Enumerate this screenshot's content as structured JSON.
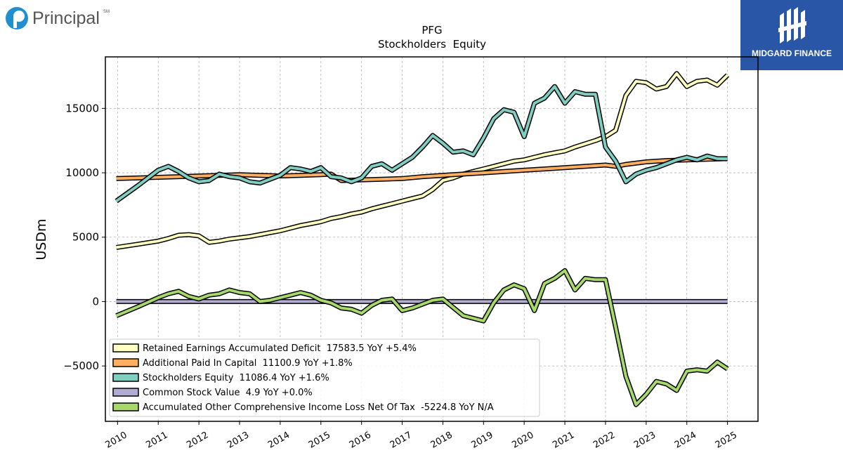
{
  "brand_left": {
    "name": "Principal",
    "mark": "SM"
  },
  "brand_right": {
    "name": "MIDGARD FINANCE"
  },
  "chart_data": {
    "type": "line",
    "title": "PFG",
    "subtitle": "Stockholders  Equity",
    "xlabel": "",
    "ylabel": "USDm",
    "xlim": [
      2009.7,
      2025.75
    ],
    "ylim": [
      -9300,
      19000
    ],
    "yticks": [
      -5000,
      0,
      5000,
      10000,
      15000
    ],
    "ytick_labels": [
      "−5000",
      "0",
      "5000",
      "10000",
      "15000"
    ],
    "xticks": [
      2010,
      2011,
      2012,
      2013,
      2014,
      2015,
      2016,
      2017,
      2018,
      2019,
      2020,
      2021,
      2022,
      2023,
      2024,
      2025
    ],
    "xtick_labels": [
      "2010",
      "2011",
      "2012",
      "2013",
      "2014",
      "2015",
      "2016",
      "2017",
      "2018",
      "2019",
      "2020",
      "2021",
      "2022",
      "2023",
      "2024",
      "2025"
    ],
    "grid": true,
    "legend_position": "lower-left",
    "series": [
      {
        "name": "Retained Earnings Accumulated Deficit",
        "legend": "Retained Earnings Accumulated Deficit  17583.5 YoY +5.4%",
        "color": "#ffffbf",
        "x": [
          2009.97,
          2010.5,
          2011.0,
          2011.25,
          2011.5,
          2011.75,
          2012.0,
          2012.25,
          2012.5,
          2012.75,
          2013.0,
          2013.25,
          2013.5,
          2013.75,
          2014.0,
          2014.25,
          2014.5,
          2014.75,
          2015.0,
          2015.25,
          2015.5,
          2015.75,
          2016.0,
          2016.25,
          2016.5,
          2016.75,
          2017.0,
          2017.25,
          2017.5,
          2017.75,
          2018.0,
          2018.25,
          2018.5,
          2018.75,
          2019.0,
          2019.25,
          2019.5,
          2019.75,
          2020.0,
          2020.25,
          2020.5,
          2020.75,
          2021.0,
          2021.25,
          2021.5,
          2021.75,
          2022.0,
          2022.25,
          2022.5,
          2022.75,
          2023.0,
          2023.25,
          2023.5,
          2023.75,
          2024.0,
          2024.25,
          2024.5,
          2024.75,
          2025.0
        ],
        "values": [
          4200,
          4450,
          4700,
          4900,
          5150,
          5200,
          5100,
          4600,
          4700,
          4850,
          4950,
          5050,
          5200,
          5350,
          5500,
          5700,
          5900,
          6050,
          6200,
          6450,
          6600,
          6800,
          6950,
          7200,
          7400,
          7600,
          7800,
          8000,
          8200,
          8700,
          9400,
          9600,
          9900,
          10100,
          10300,
          10500,
          10700,
          10900,
          11000,
          11200,
          11400,
          11550,
          11700,
          12000,
          12250,
          12500,
          12800,
          13300,
          16000,
          17100,
          17000,
          16500,
          16700,
          17700,
          16700,
          17100,
          17200,
          16800,
          17583.5
        ]
      },
      {
        "name": "Additional Paid In Capital",
        "legend": "Additional Paid In Capital  11100.9 YoY +1.8%",
        "color": "#fdae61",
        "x": [
          2009.97,
          2010.5,
          2011.0,
          2011.5,
          2012.0,
          2012.5,
          2013.0,
          2013.5,
          2014.0,
          2014.5,
          2015.0,
          2015.25,
          2015.5,
          2016.0,
          2016.5,
          2017.0,
          2017.5,
          2018.0,
          2018.5,
          2019.0,
          2019.5,
          2020.0,
          2020.5,
          2021.0,
          2021.5,
          2022.0,
          2022.25,
          2022.5,
          2023.0,
          2023.5,
          2024.0,
          2024.5,
          2025.0
        ],
        "values": [
          9550,
          9600,
          9650,
          9700,
          9750,
          9800,
          9850,
          9800,
          9750,
          9800,
          9850,
          9900,
          9400,
          9450,
          9500,
          9550,
          9700,
          9800,
          9900,
          10000,
          10100,
          10200,
          10300,
          10400,
          10500,
          10600,
          10500,
          10650,
          10850,
          10950,
          11000,
          11050,
          11100.9
        ]
      },
      {
        "name": "Stockholders Equity",
        "legend": "Stockholders Equity  11086.4 YoY +1.6%",
        "color": "#80cdc1",
        "x": [
          2009.97,
          2010.5,
          2011.0,
          2011.25,
          2011.5,
          2011.75,
          2012.0,
          2012.25,
          2012.5,
          2012.75,
          2013.0,
          2013.25,
          2013.5,
          2013.75,
          2014.0,
          2014.25,
          2014.5,
          2014.75,
          2015.0,
          2015.25,
          2015.5,
          2015.75,
          2016.0,
          2016.25,
          2016.5,
          2016.75,
          2017.0,
          2017.25,
          2017.5,
          2017.75,
          2018.0,
          2018.25,
          2018.5,
          2018.75,
          2019.0,
          2019.25,
          2019.5,
          2019.75,
          2020.0,
          2020.25,
          2020.5,
          2020.75,
          2021.0,
          2021.25,
          2021.5,
          2021.75,
          2022.0,
          2022.25,
          2022.5,
          2022.75,
          2023.0,
          2023.25,
          2023.5,
          2023.75,
          2024.0,
          2024.25,
          2024.5,
          2024.75,
          2025.0
        ],
        "values": [
          7800,
          9000,
          10200,
          10500,
          10100,
          9600,
          9300,
          9400,
          9900,
          9700,
          9600,
          9300,
          9200,
          9500,
          9800,
          10400,
          10300,
          10100,
          10400,
          9700,
          9600,
          9300,
          9600,
          10500,
          10700,
          10200,
          10700,
          11200,
          12000,
          12900,
          12300,
          11600,
          11700,
          11400,
          12700,
          14200,
          14900,
          14700,
          12800,
          15400,
          15800,
          16700,
          15400,
          16300,
          16100,
          16100,
          12000,
          10900,
          9300,
          9900,
          10200,
          10400,
          10700,
          11000,
          11200,
          11000,
          11300,
          11100,
          11086.4
        ]
      },
      {
        "name": "Common Stock Value",
        "legend": "Common Stock Value  4.9 YoY +0.0%",
        "color": "#b2abd2",
        "x": [
          2009.97,
          2025.0
        ],
        "values": [
          4.9,
          4.9
        ]
      },
      {
        "name": "Accumulated Other Comprehensive Income Loss Net Of Tax",
        "legend": "Accumulated Other Comprehensive Income Loss Net Of Tax  -5224.8 YoY N/A",
        "color": "#a6d96a",
        "x": [
          2009.97,
          2010.5,
          2011.0,
          2011.25,
          2011.5,
          2011.75,
          2012.0,
          2012.25,
          2012.5,
          2012.75,
          2013.0,
          2013.25,
          2013.5,
          2013.75,
          2014.0,
          2014.25,
          2014.5,
          2014.75,
          2015.0,
          2015.25,
          2015.5,
          2015.75,
          2016.0,
          2016.25,
          2016.5,
          2016.75,
          2017.0,
          2017.25,
          2017.5,
          2017.75,
          2018.0,
          2018.5,
          2019.0,
          2019.25,
          2019.5,
          2019.75,
          2020.0,
          2020.25,
          2020.5,
          2020.75,
          2021.0,
          2021.25,
          2021.5,
          2021.75,
          2022.0,
          2022.25,
          2022.5,
          2022.75,
          2023.0,
          2023.25,
          2023.5,
          2023.75,
          2024.0,
          2024.25,
          2024.5,
          2024.75,
          2025.0
        ],
        "values": [
          -1100,
          -400,
          300,
          600,
          800,
          400,
          200,
          500,
          600,
          900,
          700,
          600,
          0,
          100,
          300,
          500,
          700,
          500,
          100,
          -100,
          -500,
          -600,
          -900,
          -300,
          100,
          200,
          -700,
          -500,
          -200,
          100,
          200,
          -1100,
          -1500,
          -100,
          900,
          1300,
          1000,
          -700,
          1400,
          1800,
          2400,
          900,
          1800,
          1700,
          1700,
          -2000,
          -5800,
          -8000,
          -7200,
          -6200,
          -6400,
          -6900,
          -5400,
          -5300,
          -5400,
          -4700,
          -5224.8
        ]
      }
    ]
  }
}
